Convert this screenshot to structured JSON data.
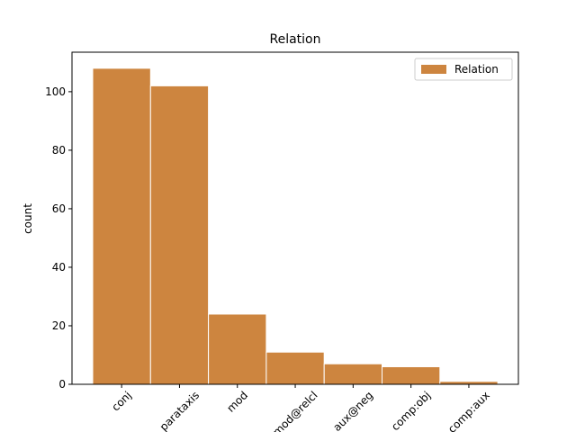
{
  "chart_data": {
    "type": "bar",
    "title": "Relation",
    "y_label": "count",
    "categories": [
      "conj",
      "parataxis",
      "mod",
      "mod@relcl",
      "aux@neg",
      "comp:obj",
      "comp:aux"
    ],
    "series": [
      {
        "name": "Relation",
        "color": "#cd853f",
        "values": [
          108,
          102,
          24,
          11,
          7,
          6,
          1
        ]
      }
    ],
    "ylim": [
      0,
      113.5
    ],
    "yticks": [
      0,
      20,
      40,
      60,
      80,
      100
    ],
    "legend": "upper right"
  }
}
